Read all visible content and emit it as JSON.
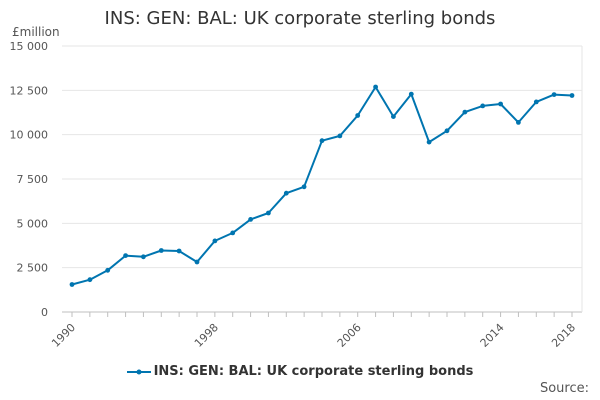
{
  "chart_data": {
    "type": "line",
    "title": "INS: GEN: BAL: UK corporate sterling bonds",
    "y_unit": "£million",
    "xlabel": "",
    "ylabel": "",
    "xlim": [
      1990,
      2018
    ],
    "ylim": [
      0,
      15000
    ],
    "x_ticks": [
      1990,
      1998,
      2006,
      2014,
      2018
    ],
    "y_ticks": [
      0,
      2500,
      5000,
      7500,
      10000,
      12500,
      15000
    ],
    "y_tick_labels": [
      "0",
      "2 500",
      "5 000",
      "7 500",
      "10 000",
      "12 500",
      "15 000"
    ],
    "grid": true,
    "legend_position": "bottom-center",
    "color": "#0075b0",
    "series": [
      {
        "name": "INS: GEN: BAL: UK corporate sterling bonds",
        "x": [
          1990,
          1991,
          1992,
          1993,
          1994,
          1995,
          1996,
          1997,
          1998,
          1999,
          2000,
          2001,
          2002,
          2003,
          2004,
          2005,
          2006,
          2007,
          2008,
          2009,
          2010,
          2011,
          2012,
          2013,
          2014,
          2015,
          2016,
          2017,
          2018
        ],
        "values": [
          1550,
          1820,
          2350,
          3180,
          3110,
          3470,
          3440,
          2820,
          4010,
          4460,
          5220,
          5580,
          6700,
          7060,
          9660,
          9930,
          11080,
          12690,
          11020,
          12290,
          9580,
          10220,
          11270,
          11620,
          11730,
          10690,
          11850,
          12260,
          12210
        ]
      }
    ]
  },
  "legend": {
    "label": "INS: GEN: BAL: UK corporate sterling bonds"
  },
  "source": {
    "label": "Source:"
  }
}
